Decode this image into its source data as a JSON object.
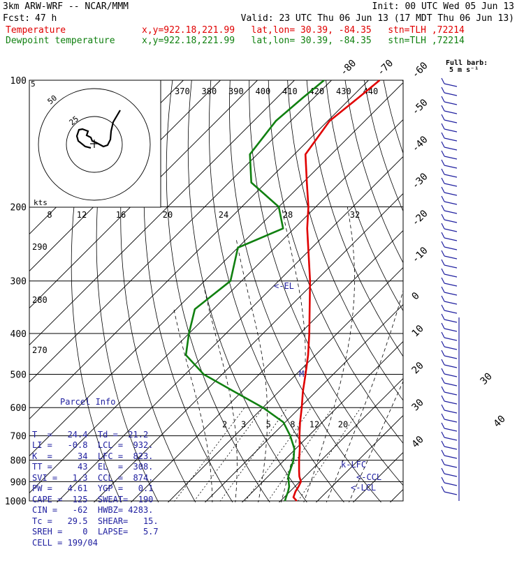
{
  "header": {
    "model": "3km ARW-WRF -- NCAR/MMM",
    "init": "Init: 00 UTC Wed 05 Jun 13",
    "fcst_label": "Fcst:",
    "fcst_value": "47 h",
    "valid": "Valid: 23 UTC Thu 06 Jun 13 (17 MDT Thu 06 Jun 13)",
    "temp_name": "Temperature",
    "dew_name": "Dewpoint temperature",
    "location": "x,y=922.18,221.99   lat,lon= 30.39, -84.35   stn=TLH ,72214"
  },
  "barb_legend": {
    "title": "Full barb:",
    "value": "5 m s⁻¹"
  },
  "pressure_labels": [
    "100",
    "200",
    "300",
    "400",
    "500",
    "600",
    "700",
    "800",
    "900",
    "1000"
  ],
  "temp_labels": [
    "-80",
    "-70",
    "-60",
    "-50",
    "-40",
    "-30",
    "-20",
    "-10",
    "0",
    "10",
    "20",
    "30",
    "40"
  ],
  "theta_labels": [
    "370",
    "380",
    "390",
    "400",
    "410",
    "420",
    "430",
    "440"
  ],
  "theta_left_labels": [
    "290",
    "280",
    "270"
  ],
  "mixing_labels": [
    "2",
    "3",
    "5",
    "8",
    "12",
    "20"
  ],
  "hodograph": {
    "unit": "kts",
    "ring_labels": [
      "25",
      "50"
    ],
    "speed_labels": [
      "8",
      "12",
      "16",
      "20",
      "24",
      "28",
      "32"
    ],
    "corner": "5"
  },
  "parcel_info": {
    "title": "Parcel Info",
    "rows": [
      "T  =   24.4  Td =  21.2",
      "LI =   -0.8  LCL =  932.",
      "K  =     34  LFC =  823.",
      "TT =     43  EL  =  308.",
      "SVI =   1.3  CCL =  874.",
      "PW =   4.61  YGP =   0.1",
      "CAPE =  125  SWEAT=  190",
      "CIN =   -62  HWBZ= 4283.",
      "Tc =   29.5  SHEAR=   15.",
      "SREH =    0  LAPSE=   5.7",
      "CELL = 199/04"
    ]
  },
  "annotations": {
    "el": "<-EL",
    "m": "M",
    "lfc": "k-LFC",
    "ccl": "<-CCL",
    "lcl": "<-LCL"
  },
  "colors": {
    "temperature": "#e00000",
    "dewpoint": "#108010",
    "barbs": "#2020a0",
    "annot": "#2020a0"
  },
  "chart_data": {
    "type": "line",
    "title": "",
    "xlabel": "",
    "ylabel": "",
    "ylim": [
      1000,
      100
    ],
    "series": [
      {
        "name": "Temperature",
        "pressure": [
          1000,
          980,
          950,
          925,
          900,
          875,
          850,
          800,
          750,
          700,
          650,
          600,
          550,
          500,
          450,
          400,
          350,
          300,
          250,
          225,
          200,
          175,
          150,
          125,
          110,
          100
        ],
        "values": [
          24.4,
          22.5,
          21.5,
          21.0,
          20.3,
          18.5,
          17.0,
          14.0,
          11.0,
          7.5,
          4.0,
          0.5,
          -3.5,
          -7.5,
          -12.0,
          -17.5,
          -24.0,
          -31.5,
          -41.0,
          -46.5,
          -52.0,
          -59.0,
          -67.0,
          -69.5,
          -68.0,
          -67.0
        ]
      },
      {
        "name": "Dewpoint temperature",
        "pressure": [
          1000,
          980,
          950,
          925,
          900,
          875,
          850,
          800,
          750,
          700,
          650,
          600,
          550,
          500,
          450,
          400,
          350,
          300,
          250,
          225,
          200,
          175,
          150,
          125,
          110,
          100
        ],
        "values": [
          21.2,
          20.5,
          19.5,
          18.5,
          17.0,
          15.5,
          14.5,
          12.5,
          9.5,
          5.0,
          -0.5,
          -10.0,
          -22.0,
          -35.0,
          -45.0,
          -50.0,
          -55.0,
          -53.0,
          -60.0,
          -53.0,
          -60.0,
          -74.0,
          -82.0,
          -84.0,
          -83.0,
          -82.0
        ]
      }
    ]
  }
}
